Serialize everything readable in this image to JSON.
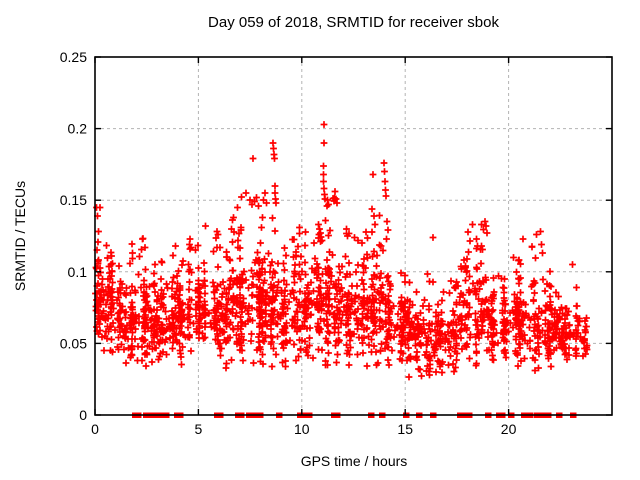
{
  "chart": {
    "title": "Day 059 of 2018, SRMTID for receiver sbok",
    "x_label": "GPS time / hours",
    "y_label": "SRMTID / TECUs"
  },
  "chart_data": {
    "type": "scatter",
    "title": "Day 059 of 2018, SRMTID for receiver sbok",
    "xlabel": "GPS time / hours",
    "ylabel": "SRMTID / TECUs",
    "x_range": [
      0,
      25
    ],
    "y_range": [
      0,
      0.25
    ],
    "x_ticks": [
      {
        "v": 0,
        "label": "0"
      },
      {
        "v": 5,
        "label": "5"
      },
      {
        "v": 10,
        "label": "10"
      },
      {
        "v": 15,
        "label": "15"
      },
      {
        "v": 20,
        "label": "20"
      }
    ],
    "y_ticks": [
      {
        "v": 0,
        "label": "0"
      },
      {
        "v": 0.05,
        "label": "0.05"
      },
      {
        "v": 0.1,
        "label": "0.1"
      },
      {
        "v": 0.15,
        "label": "0.15"
      },
      {
        "v": 0.2,
        "label": "0.2"
      },
      {
        "v": 0.25,
        "label": "0.25"
      }
    ],
    "x_grid": [
      5,
      10,
      15,
      20
    ],
    "y_grid": [
      0.05,
      0.1,
      0.15,
      0.2
    ],
    "grid_on": true,
    "legend": "none",
    "marker": "plus",
    "colors": {
      "marker": "#ff0000",
      "grid": "#b3b3b3",
      "axis": "#000000",
      "background": "#ffffff",
      "text": "#000000"
    },
    "seed": 20180059,
    "x_data_extent": [
      0,
      23.8
    ],
    "y_bulk_extent": [
      0.02,
      0.125
    ],
    "max_point": [
      11.08,
      0.203
    ],
    "density_segments": [
      [
        0,
        0.5,
        55,
        0.04,
        0.115,
        0.145
      ],
      [
        0.5,
        1,
        50,
        0.04,
        0.105,
        0.12
      ],
      [
        1,
        1.5,
        45,
        0.035,
        0.1,
        0.115
      ],
      [
        1.5,
        2,
        48,
        0.03,
        0.105,
        0.12
      ],
      [
        2,
        2.5,
        50,
        0.03,
        0.11,
        0.125
      ],
      [
        2.5,
        3,
        46,
        0.03,
        0.105,
        0.115
      ],
      [
        3,
        3.5,
        42,
        0.03,
        0.095,
        0.11
      ],
      [
        3.5,
        4,
        42,
        0.035,
        0.1,
        0.118
      ],
      [
        4,
        4.5,
        45,
        0.03,
        0.1,
        0.11
      ],
      [
        4.5,
        5,
        42,
        0.04,
        0.105,
        0.125
      ],
      [
        5,
        5.5,
        46,
        0.04,
        0.11,
        0.132
      ],
      [
        5.5,
        6,
        42,
        0.035,
        0.105,
        0.128
      ],
      [
        6,
        6.5,
        46,
        0.03,
        0.11,
        0.13
      ],
      [
        6.5,
        7,
        50,
        0.03,
        0.115,
        0.145
      ],
      [
        7,
        7.5,
        52,
        0.03,
        0.12,
        0.155
      ],
      [
        7.5,
        8,
        55,
        0.03,
        0.125,
        0.152
      ],
      [
        8,
        8.5,
        52,
        0.03,
        0.12,
        0.155
      ],
      [
        8.5,
        9,
        50,
        0.03,
        0.115,
        0.16
      ],
      [
        9,
        9.5,
        46,
        0.03,
        0.105,
        0.12
      ],
      [
        9.5,
        10,
        46,
        0.03,
        0.11,
        0.131
      ],
      [
        10,
        10.5,
        50,
        0.03,
        0.115,
        0.13
      ],
      [
        10.5,
        11,
        50,
        0.03,
        0.12,
        0.133
      ],
      [
        11,
        11.5,
        55,
        0.03,
        0.125,
        0.15
      ],
      [
        11.5,
        12,
        46,
        0.03,
        0.115,
        0.156
      ],
      [
        12,
        12.5,
        46,
        0.03,
        0.11,
        0.13
      ],
      [
        12.5,
        13,
        46,
        0.03,
        0.115,
        0.125
      ],
      [
        13,
        13.5,
        46,
        0.03,
        0.11,
        0.144
      ],
      [
        13.5,
        14,
        46,
        0.03,
        0.115,
        0.15
      ],
      [
        14,
        14.5,
        42,
        0.03,
        0.11,
        0.135
      ],
      [
        14.5,
        15,
        40,
        0.03,
        0.095,
        0.105
      ],
      [
        15,
        15.5,
        40,
        0.025,
        0.09,
        0.1
      ],
      [
        15.5,
        16,
        40,
        0.025,
        0.085,
        0.095
      ],
      [
        16,
        16.5,
        40,
        0.02,
        0.08,
        0.1
      ],
      [
        16.5,
        17,
        42,
        0.02,
        0.08,
        0.09
      ],
      [
        17,
        17.5,
        42,
        0.025,
        0.085,
        0.095
      ],
      [
        17.5,
        18,
        40,
        0.03,
        0.1,
        0.11
      ],
      [
        18,
        18.5,
        40,
        0.03,
        0.11,
        0.133
      ],
      [
        18.5,
        19,
        40,
        0.035,
        0.115,
        0.135
      ],
      [
        19,
        19.5,
        40,
        0.03,
        0.095,
        0.105
      ],
      [
        19.5,
        20,
        40,
        0.03,
        0.095,
        0.105
      ],
      [
        20,
        20.5,
        40,
        0.03,
        0.1,
        0.115
      ],
      [
        20.5,
        21,
        44,
        0.03,
        0.105,
        0.125
      ],
      [
        21,
        21.5,
        42,
        0.03,
        0.1,
        0.128
      ],
      [
        21.5,
        22,
        40,
        0.03,
        0.095,
        0.12
      ],
      [
        22,
        22.5,
        44,
        0.03,
        0.085,
        0.095
      ],
      [
        22.5,
        23,
        44,
        0.035,
        0.08,
        0.09
      ],
      [
        23,
        23.8,
        40,
        0.035,
        0.075,
        0.105
      ]
    ],
    "highlight_points": [
      [
        0.08,
        0.145
      ],
      [
        0.12,
        0.139
      ],
      [
        0.16,
        0.128
      ],
      [
        0.05,
        0.103
      ],
      [
        2.3,
        0.123
      ],
      [
        3.9,
        0.118
      ],
      [
        4.6,
        0.123
      ],
      [
        5.35,
        0.132
      ],
      [
        5.9,
        0.128
      ],
      [
        6.7,
        0.138
      ],
      [
        6.9,
        0.145
      ],
      [
        7.05,
        0.131
      ],
      [
        7.3,
        0.155
      ],
      [
        7.5,
        0.15
      ],
      [
        7.58,
        0.147
      ],
      [
        7.64,
        0.179
      ],
      [
        7.72,
        0.149
      ],
      [
        7.8,
        0.152
      ],
      [
        7.9,
        0.146
      ],
      [
        8.15,
        0.15
      ],
      [
        8.22,
        0.155
      ],
      [
        8.3,
        0.148
      ],
      [
        8.6,
        0.19
      ],
      [
        8.63,
        0.186
      ],
      [
        8.66,
        0.182
      ],
      [
        8.68,
        0.179
      ],
      [
        8.7,
        0.16
      ],
      [
        8.71,
        0.155
      ],
      [
        8.73,
        0.151
      ],
      [
        8.76,
        0.148
      ],
      [
        9.9,
        0.131
      ],
      [
        10.8,
        0.133
      ],
      [
        10.85,
        0.13
      ],
      [
        10.9,
        0.127
      ],
      [
        11.08,
        0.203
      ],
      [
        11.08,
        0.19
      ],
      [
        11.05,
        0.174
      ],
      [
        11.05,
        0.168
      ],
      [
        11.06,
        0.163
      ],
      [
        11.07,
        0.158
      ],
      [
        11.09,
        0.154
      ],
      [
        11.12,
        0.151
      ],
      [
        11.25,
        0.15
      ],
      [
        11.3,
        0.147
      ],
      [
        11.6,
        0.156
      ],
      [
        11.65,
        0.151
      ],
      [
        11.7,
        0.148
      ],
      [
        12.15,
        0.13
      ],
      [
        12.2,
        0.125
      ],
      [
        13.4,
        0.144
      ],
      [
        13.45,
        0.168
      ],
      [
        13.5,
        0.139
      ],
      [
        13.55,
        0.133
      ],
      [
        13.98,
        0.176
      ],
      [
        14.0,
        0.17
      ],
      [
        14.02,
        0.163
      ],
      [
        14.05,
        0.157
      ],
      [
        14.08,
        0.153
      ],
      [
        14.12,
        0.135
      ],
      [
        16.35,
        0.124
      ],
      [
        18.25,
        0.133
      ],
      [
        18.85,
        0.135
      ],
      [
        18.9,
        0.132
      ],
      [
        18.95,
        0.127
      ],
      [
        20.7,
        0.123
      ],
      [
        21.55,
        0.128
      ],
      [
        21.6,
        0.119
      ],
      [
        21.65,
        0.113
      ],
      [
        23.1,
        0.105
      ]
    ],
    "zero_marker_hours": [
      1.95,
      2.1,
      2.45,
      2.6,
      2.8,
      2.95,
      3.25,
      3.45,
      3.95,
      4.1,
      5.9,
      6.05,
      6.9,
      7.05,
      7.45,
      7.6,
      7.85,
      8.0,
      8.9,
      9.9,
      10.05,
      10.35,
      11.55,
      11.7,
      13.35,
      13.9,
      15.05,
      15.65,
      16.35,
      17.65,
      17.8,
      17.95,
      18.1,
      19.0,
      19.55,
      19.7,
      20.1,
      20.75,
      20.9,
      21.05,
      21.35,
      21.6,
      21.9,
      22.45,
      23.1
    ]
  }
}
